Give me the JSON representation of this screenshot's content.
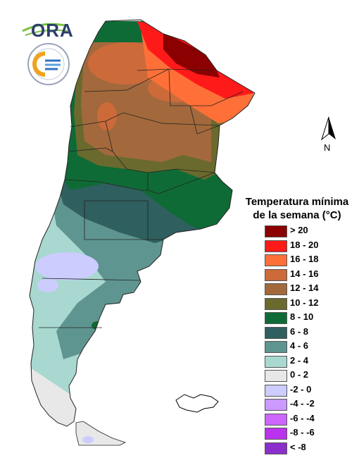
{
  "logo": {
    "ora_text": "ORA"
  },
  "north_arrow": {
    "label": "N"
  },
  "legend": {
    "title_line1": "Temperatura mínima",
    "title_line2": "de la semana (°C)",
    "items": [
      {
        "label": "> 20",
        "color": "#8b0000"
      },
      {
        "label": "18 - 20",
        "color": "#ff1a1a"
      },
      {
        "label": "16 - 18",
        "color": "#ff7038"
      },
      {
        "label": "14 - 16",
        "color": "#cc6a3a"
      },
      {
        "label": "12 - 14",
        "color": "#a3693c"
      },
      {
        "label": "10 - 12",
        "color": "#6b6a2e"
      },
      {
        "label": "8 - 10",
        "color": "#0f6b35"
      },
      {
        "label": "6 - 8",
        "color": "#2f5f5e"
      },
      {
        "label": "4 - 6",
        "color": "#5f9590"
      },
      {
        "label": "2 - 4",
        "color": "#a8d8d0"
      },
      {
        "label": "0 - 2",
        "color": "#e8e8e8"
      },
      {
        "label": "-2 - 0",
        "color": "#ccccff"
      },
      {
        "label": "-4 - -2",
        "color": "#cc99ff"
      },
      {
        "label": "-6 - -4",
        "color": "#cc66ff"
      },
      {
        "label": "-8 - -6",
        "color": "#bb33ee"
      },
      {
        "label": "< -8",
        "color": "#8b2fcc"
      }
    ]
  }
}
